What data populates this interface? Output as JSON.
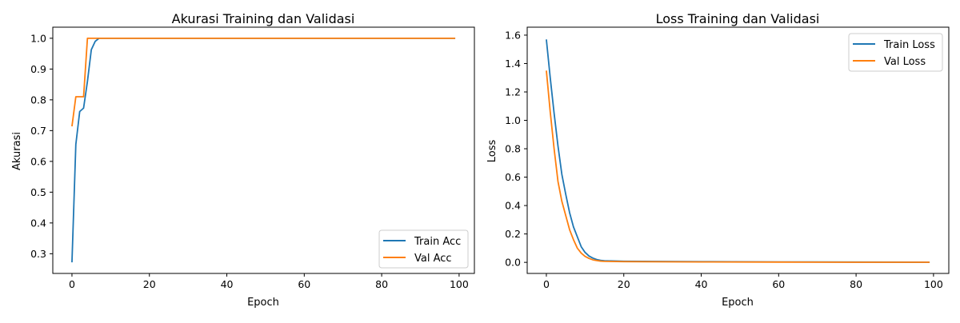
{
  "colors": {
    "train": "#1f77b4",
    "val": "#ff7f0e"
  },
  "chart_data": [
    {
      "type": "line",
      "title": "Akurasi Training dan Validasi",
      "xlabel": "Epoch",
      "ylabel": "Akurasi",
      "xlim": [
        -4.95,
        103.95
      ],
      "ylim": [
        0.236,
        1.036
      ],
      "xticks": [
        0,
        20,
        40,
        60,
        80,
        100
      ],
      "yticks": [
        0.3,
        0.4,
        0.5,
        0.6,
        0.7,
        0.8,
        0.9,
        1.0
      ],
      "xtick_labels": [
        "0",
        "20",
        "40",
        "60",
        "80",
        "100"
      ],
      "ytick_labels": [
        "0.3",
        "0.4",
        "0.5",
        "0.6",
        "0.7",
        "0.8",
        "0.9",
        "1.0"
      ],
      "legend_position": "lower-right",
      "series": [
        {
          "name": "Train Acc",
          "color": "#1f77b4",
          "points": [
            [
              0,
              0.272
            ],
            [
              1,
              0.655
            ],
            [
              2,
              0.762
            ],
            [
              3,
              0.773
            ],
            [
              4,
              0.86
            ],
            [
              5,
              0.963
            ],
            [
              6,
              0.99
            ],
            [
              7,
              1.0
            ],
            [
              99,
              1.0
            ]
          ]
        },
        {
          "name": "Val Acc",
          "color": "#ff7f0e",
          "points": [
            [
              0,
              0.714
            ],
            [
              1,
              0.81
            ],
            [
              2,
              0.81
            ],
            [
              3,
              0.81
            ],
            [
              4,
              1.0
            ],
            [
              99,
              1.0
            ]
          ]
        }
      ]
    },
    {
      "type": "line",
      "title": "Loss Training dan Validasi",
      "xlabel": "Epoch",
      "ylabel": "Loss",
      "xlim": [
        -4.95,
        103.95
      ],
      "ylim": [
        -0.078,
        1.656
      ],
      "xticks": [
        0,
        20,
        40,
        60,
        80,
        100
      ],
      "yticks": [
        0.0,
        0.2,
        0.4,
        0.6,
        0.8,
        1.0,
        1.2,
        1.4,
        1.6
      ],
      "xtick_labels": [
        "0",
        "20",
        "40",
        "60",
        "80",
        "100"
      ],
      "ytick_labels": [
        "0.0",
        "0.2",
        "0.4",
        "0.6",
        "0.8",
        "1.0",
        "1.2",
        "1.4",
        "1.6"
      ],
      "legend_position": "upper-right",
      "series": [
        {
          "name": "Train Loss",
          "color": "#1f77b4",
          "points": [
            [
              0,
              1.57
            ],
            [
              1,
              1.3
            ],
            [
              2,
              1.05
            ],
            [
              3,
              0.82
            ],
            [
              4,
              0.62
            ],
            [
              5,
              0.48
            ],
            [
              6,
              0.35
            ],
            [
              7,
              0.25
            ],
            [
              8,
              0.18
            ],
            [
              9,
              0.11
            ],
            [
              10,
              0.07
            ],
            [
              11,
              0.045
            ],
            [
              12,
              0.03
            ],
            [
              13,
              0.02
            ],
            [
              14,
              0.014
            ],
            [
              15,
              0.011
            ],
            [
              20,
              0.008
            ],
            [
              30,
              0.006
            ],
            [
              40,
              0.005
            ],
            [
              60,
              0.003
            ],
            [
              80,
              0.002
            ],
            [
              99,
              0.001
            ]
          ]
        },
        {
          "name": "Val Loss",
          "color": "#ff7f0e",
          "points": [
            [
              0,
              1.35
            ],
            [
              1,
              1.06
            ],
            [
              2,
              0.8
            ],
            [
              3,
              0.57
            ],
            [
              4,
              0.43
            ],
            [
              5,
              0.33
            ],
            [
              6,
              0.23
            ],
            [
              7,
              0.16
            ],
            [
              8,
              0.1
            ],
            [
              9,
              0.065
            ],
            [
              10,
              0.042
            ],
            [
              11,
              0.028
            ],
            [
              12,
              0.018
            ],
            [
              13,
              0.013
            ],
            [
              14,
              0.009
            ],
            [
              15,
              0.007
            ],
            [
              20,
              0.005
            ],
            [
              40,
              0.003
            ],
            [
              60,
              0.002
            ],
            [
              80,
              0.001
            ],
            [
              99,
              0.001
            ]
          ]
        }
      ]
    }
  ]
}
